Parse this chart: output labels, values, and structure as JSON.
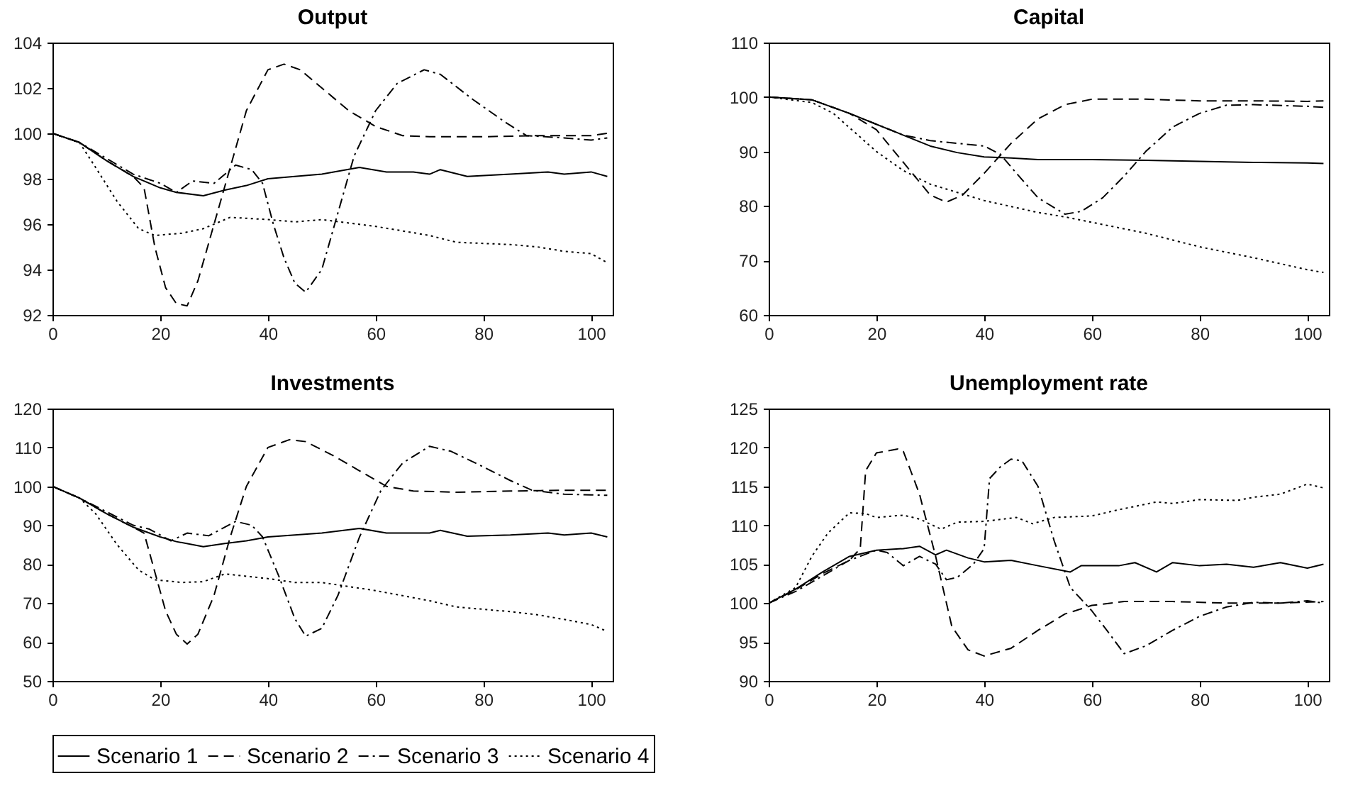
{
  "chart_data": [
    {
      "type": "line",
      "title": "Output",
      "xlim": [
        0,
        104
      ],
      "xticks": [
        0,
        20,
        40,
        60,
        80,
        100
      ],
      "ylim": [
        92,
        104
      ],
      "yticks": [
        92,
        94,
        96,
        98,
        100,
        102,
        104
      ],
      "legend": "bottom",
      "grid": false,
      "series": [
        {
          "name": "Scenario 1",
          "color": "#000000",
          "line_style": "solid",
          "x": [
            0,
            5,
            10,
            15,
            20,
            23,
            28,
            32,
            36,
            40,
            45,
            50,
            57,
            62,
            67,
            70,
            72,
            77,
            85,
            92,
            95,
            100,
            103
          ],
          "values": [
            100,
            99.6,
            98.8,
            98.1,
            97.6,
            97.4,
            97.25,
            97.5,
            97.7,
            98.0,
            98.1,
            98.2,
            98.5,
            98.3,
            98.3,
            98.2,
            98.4,
            98.1,
            98.2,
            98.3,
            98.2,
            98.3,
            98.1
          ]
        },
        {
          "name": "Scenario 2",
          "color": "#000000",
          "line_style": "dashed",
          "x": [
            0,
            5,
            10,
            15,
            17,
            19,
            21,
            23,
            25,
            27,
            30,
            33,
            36,
            40,
            43,
            46,
            50,
            55,
            60,
            65,
            70,
            80,
            90,
            100,
            103
          ],
          "values": [
            100,
            99.6,
            98.8,
            98.1,
            97.6,
            95,
            93.2,
            92.5,
            92.4,
            93.5,
            96,
            98.5,
            101,
            102.8,
            103.05,
            102.8,
            102,
            101,
            100.3,
            99.9,
            99.85,
            99.85,
            99.9,
            99.9,
            100
          ]
        },
        {
          "name": "Scenario 3",
          "color": "#000000",
          "line_style": "dashdot",
          "x": [
            0,
            5,
            10,
            15,
            20,
            23,
            26,
            30,
            34,
            37,
            39,
            41,
            43,
            45,
            47,
            50,
            53,
            56,
            60,
            64,
            69,
            72,
            78,
            84,
            88,
            95,
            100,
            103
          ],
          "values": [
            100,
            99.6,
            98.9,
            98.2,
            97.8,
            97.4,
            97.9,
            97.8,
            98.6,
            98.4,
            97.8,
            96,
            94.5,
            93.4,
            93,
            94,
            96.5,
            99,
            101,
            102.2,
            102.8,
            102.6,
            101.5,
            100.5,
            99.9,
            99.8,
            99.7,
            99.8
          ]
        },
        {
          "name": "Scenario 4",
          "color": "#000000",
          "line_style": "dotted",
          "x": [
            0,
            5,
            8,
            12,
            16,
            19,
            24,
            28,
            33,
            40,
            45,
            50,
            60,
            70,
            75,
            85,
            90,
            95,
            100,
            103
          ],
          "values": [
            100,
            99.6,
            98.5,
            97,
            95.8,
            95.5,
            95.6,
            95.8,
            96.3,
            96.2,
            96.1,
            96.2,
            95.9,
            95.5,
            95.2,
            95.1,
            95,
            94.8,
            94.7,
            94.3
          ]
        }
      ]
    },
    {
      "type": "line",
      "title": "Capital",
      "xlim": [
        0,
        104
      ],
      "xticks": [
        0,
        20,
        40,
        60,
        80,
        100
      ],
      "ylim": [
        60,
        110
      ],
      "yticks": [
        60,
        70,
        80,
        90,
        100,
        110
      ],
      "legend": "bottom",
      "grid": false,
      "series": [
        {
          "name": "Scenario 1",
          "color": "#000000",
          "line_style": "solid",
          "x": [
            0,
            8,
            15,
            20,
            25,
            30,
            35,
            40,
            45,
            50,
            60,
            70,
            80,
            90,
            100,
            103
          ],
          "values": [
            100,
            99.5,
            97,
            95,
            93,
            91,
            89.8,
            89,
            88.8,
            88.5,
            88.5,
            88.4,
            88.2,
            88,
            87.9,
            87.8
          ]
        },
        {
          "name": "Scenario 2",
          "color": "#000000",
          "line_style": "dashed",
          "x": [
            0,
            8,
            15,
            20,
            25,
            30,
            33,
            36,
            40,
            45,
            50,
            55,
            60,
            70,
            80,
            90,
            100,
            103
          ],
          "values": [
            100,
            99.5,
            97,
            94,
            88,
            82,
            80.7,
            82,
            86,
            91.5,
            96,
            98.6,
            99.6,
            99.6,
            99.3,
            99.3,
            99.2,
            99.3
          ]
        },
        {
          "name": "Scenario 3",
          "color": "#000000",
          "line_style": "dashdot",
          "x": [
            0,
            8,
            15,
            20,
            25,
            30,
            35,
            40,
            43,
            46,
            50,
            55,
            58,
            62,
            66,
            70,
            75,
            80,
            85,
            90,
            100,
            103
          ],
          "values": [
            100,
            99.5,
            97,
            95,
            93,
            92,
            91.5,
            91,
            89.5,
            86,
            81.5,
            78.5,
            79,
            81.5,
            85.5,
            90,
            94.5,
            97,
            98.5,
            98.6,
            98.3,
            98.1
          ]
        },
        {
          "name": "Scenario 4",
          "color": "#000000",
          "line_style": "dotted",
          "x": [
            0,
            8,
            12,
            16,
            20,
            25,
            30,
            35,
            40,
            50,
            55,
            60,
            70,
            80,
            90,
            100,
            103
          ],
          "values": [
            100,
            99,
            97,
            93.5,
            90,
            86.5,
            84,
            82.5,
            81,
            78.8,
            78,
            77,
            75,
            72.5,
            70.5,
            68.3,
            67.8
          ]
        }
      ]
    },
    {
      "type": "line",
      "title": "Investments",
      "xlim": [
        0,
        104
      ],
      "xticks": [
        0,
        20,
        40,
        60,
        80,
        100
      ],
      "ylim": [
        50,
        120
      ],
      "yticks": [
        50,
        60,
        70,
        80,
        90,
        100,
        110,
        120
      ],
      "legend": "bottom",
      "grid": false,
      "series": [
        {
          "name": "Scenario 1",
          "color": "#000000",
          "line_style": "solid",
          "x": [
            0,
            5,
            10,
            15,
            20,
            23,
            28,
            32,
            36,
            40,
            45,
            50,
            57,
            62,
            67,
            70,
            72,
            77,
            85,
            92,
            95,
            100,
            103
          ],
          "values": [
            100,
            97,
            93,
            89.5,
            87,
            85.8,
            84.5,
            85.3,
            86,
            87,
            87.5,
            88,
            89.2,
            88,
            88,
            88,
            88.7,
            87.2,
            87.5,
            88,
            87.5,
            88,
            87
          ]
        },
        {
          "name": "Scenario 2",
          "color": "#000000",
          "line_style": "dashed",
          "x": [
            0,
            5,
            10,
            15,
            17,
            19,
            21,
            23,
            25,
            27,
            30,
            33,
            36,
            40,
            44,
            47,
            52,
            57,
            62,
            67,
            75,
            85,
            95,
            103
          ],
          "values": [
            100,
            97,
            93,
            89.5,
            88,
            78,
            68,
            62,
            59.5,
            62,
            72,
            87,
            100,
            110,
            112,
            111.5,
            108,
            104,
            100,
            98.8,
            98.5,
            98.8,
            99,
            99
          ]
        },
        {
          "name": "Scenario 3",
          "color": "#000000",
          "line_style": "dashdot",
          "x": [
            0,
            5,
            10,
            15,
            18,
            22,
            25,
            29,
            34,
            37,
            39,
            42,
            45,
            47,
            50,
            53,
            57,
            61,
            65,
            70,
            74,
            80,
            85,
            89,
            95,
            100,
            103
          ],
          "values": [
            100,
            97,
            93.5,
            90,
            89,
            86,
            88,
            87.3,
            91,
            90,
            87,
            77,
            66,
            61.5,
            63.5,
            72,
            87,
            99,
            106,
            110.3,
            109,
            105,
            101.5,
            99,
            98,
            97.8,
            97.7
          ]
        },
        {
          "name": "Scenario 4",
          "color": "#000000",
          "line_style": "dotted",
          "x": [
            0,
            5,
            8,
            12,
            16,
            19,
            24,
            28,
            32,
            40,
            45,
            50,
            60,
            70,
            75,
            85,
            90,
            95,
            100,
            103
          ],
          "values": [
            100,
            97,
            93,
            85,
            78.5,
            76,
            75.3,
            75.5,
            77.5,
            76.3,
            75.3,
            75.3,
            73.2,
            70.6,
            69,
            67.8,
            67,
            65.8,
            64.5,
            62.7
          ]
        }
      ]
    },
    {
      "type": "line",
      "title": "Unemployment rate",
      "xlim": [
        0,
        104
      ],
      "xticks": [
        0,
        20,
        40,
        60,
        80,
        100
      ],
      "ylim": [
        90,
        125
      ],
      "yticks": [
        90,
        95,
        100,
        105,
        110,
        115,
        120,
        125
      ],
      "legend": "bottom",
      "grid": false,
      "series": [
        {
          "name": "Scenario 1",
          "color": "#000000",
          "line_style": "solid",
          "x": [
            0,
            5,
            10,
            15,
            20,
            25,
            28,
            31,
            33,
            37,
            40,
            45,
            50,
            56,
            58,
            65,
            68,
            72,
            75,
            80,
            85,
            90,
            95,
            100,
            103
          ],
          "values": [
            100,
            101.8,
            104,
            106,
            106.8,
            107,
            107.3,
            106.2,
            106.8,
            105.8,
            105.3,
            105.5,
            104.8,
            104,
            104.8,
            104.8,
            105.2,
            104,
            105.2,
            104.8,
            105,
            104.6,
            105.2,
            104.5,
            105
          ]
        },
        {
          "name": "Scenario 2",
          "color": "#000000",
          "line_style": "dashed",
          "x": [
            0,
            5,
            10,
            15,
            17,
            18,
            20,
            24,
            25,
            28,
            31,
            34,
            37,
            40,
            45,
            50,
            55,
            60,
            66,
            75,
            85,
            95,
            103
          ],
          "values": [
            100,
            101.7,
            103.8,
            105.5,
            107,
            117,
            119.3,
            119.8,
            119.5,
            114,
            106,
            97,
            94,
            93.2,
            94.2,
            96.5,
            98.6,
            99.7,
            100.2,
            100.2,
            100,
            100,
            100.2
          ]
        },
        {
          "name": "Scenario 3",
          "color": "#000000",
          "line_style": "dashdot",
          "x": [
            0,
            5,
            10,
            15,
            20,
            22,
            25,
            28,
            31,
            33,
            35,
            38,
            40,
            41,
            43,
            45,
            47,
            50,
            53,
            56,
            60,
            63,
            66,
            70,
            75,
            80,
            85,
            90,
            95,
            100,
            103
          ],
          "values": [
            100,
            101.5,
            103.5,
            105.5,
            106.8,
            106.5,
            104.8,
            106,
            105,
            103,
            103.3,
            105,
            107,
            116,
            117.5,
            118.5,
            118.3,
            115,
            108,
            102,
            99,
            96.3,
            93.5,
            94.5,
            96.5,
            98.3,
            99.5,
            100.1,
            100,
            100.3,
            100
          ]
        },
        {
          "name": "Scenario 4",
          "color": "#000000",
          "line_style": "dotted",
          "x": [
            0,
            5,
            8,
            11,
            15,
            18,
            20,
            25,
            28,
            32,
            35,
            40,
            46,
            49,
            53,
            60,
            65,
            72,
            75,
            80,
            87,
            90,
            95,
            100,
            103
          ],
          "values": [
            100,
            102,
            106,
            109,
            111.6,
            111.5,
            111,
            111.3,
            110.8,
            109.5,
            110.4,
            110.5,
            111,
            110.2,
            111,
            111.2,
            112,
            113,
            112.8,
            113.3,
            113.2,
            113.6,
            114,
            115.3,
            114.8
          ]
        }
      ]
    }
  ]
}
